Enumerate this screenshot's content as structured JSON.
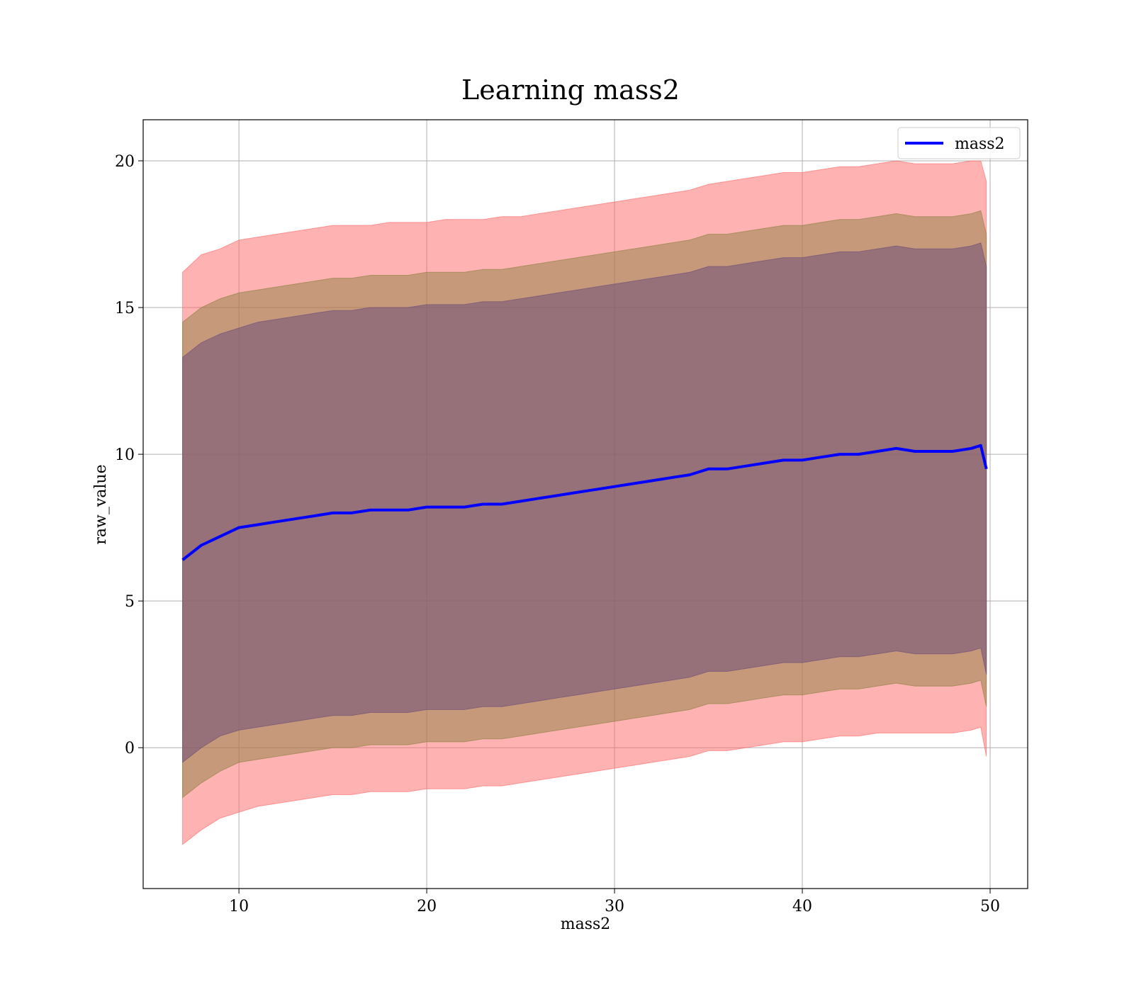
{
  "chart_data": {
    "type": "area",
    "title": "Learning mass2",
    "xlabel": "mass2",
    "ylabel": "raw_value",
    "xlim": [
      4.9,
      52
    ],
    "ylim": [
      -4.8,
      21.4
    ],
    "xticks": [
      10,
      20,
      30,
      40,
      50
    ],
    "yticks": [
      0,
      5,
      10,
      15,
      20
    ],
    "grid": true,
    "legend": {
      "placement": "top-right",
      "entries": [
        "mass2"
      ]
    },
    "series": [
      {
        "name": "mass2",
        "color": "#0000ff",
        "x": [
          7.0,
          8.0,
          9.0,
          10.0,
          11.0,
          12.0,
          13.0,
          14.0,
          15.0,
          16.0,
          17.0,
          18.0,
          19.0,
          20.0,
          21.0,
          22.0,
          23.0,
          24.0,
          25.0,
          26.0,
          27.0,
          28.0,
          29.0,
          30.0,
          31.0,
          32.0,
          33.0,
          34.0,
          35.0,
          36.0,
          37.0,
          38.0,
          39.0,
          40.0,
          41.0,
          42.0,
          43.0,
          44.0,
          45.0,
          46.0,
          47.0,
          48.0,
          49.0,
          49.5,
          49.8
        ],
        "y": [
          6.4,
          6.9,
          7.2,
          7.5,
          7.6,
          7.7,
          7.8,
          7.9,
          8.0,
          8.0,
          8.1,
          8.1,
          8.1,
          8.2,
          8.2,
          8.2,
          8.3,
          8.3,
          8.4,
          8.5,
          8.6,
          8.7,
          8.8,
          8.9,
          9.0,
          9.1,
          9.2,
          9.3,
          9.5,
          9.5,
          9.6,
          9.7,
          9.8,
          9.8,
          9.9,
          10.0,
          10.0,
          10.1,
          10.2,
          10.1,
          10.1,
          10.1,
          10.2,
          10.3,
          9.5
        ]
      }
    ],
    "bands": [
      {
        "color": "#ff6666",
        "lower": [
          -3.3,
          -2.8,
          -2.4,
          -2.2,
          -2.0,
          -1.9,
          -1.8,
          -1.7,
          -1.6,
          -1.6,
          -1.5,
          -1.5,
          -1.5,
          -1.4,
          -1.4,
          -1.4,
          -1.3,
          -1.3,
          -1.2,
          -1.1,
          -1.0,
          -0.9,
          -0.8,
          -0.7,
          -0.6,
          -0.5,
          -0.4,
          -0.3,
          -0.1,
          -0.1,
          0.0,
          0.1,
          0.2,
          0.2,
          0.3,
          0.4,
          0.4,
          0.5,
          0.5,
          0.5,
          0.5,
          0.5,
          0.6,
          0.7,
          -0.3
        ],
        "upper": [
          16.2,
          16.8,
          17.0,
          17.3,
          17.4,
          17.5,
          17.6,
          17.7,
          17.8,
          17.8,
          17.8,
          17.9,
          17.9,
          17.9,
          18.0,
          18.0,
          18.0,
          18.1,
          18.1,
          18.2,
          18.3,
          18.4,
          18.5,
          18.6,
          18.7,
          18.8,
          18.9,
          19.0,
          19.2,
          19.3,
          19.4,
          19.5,
          19.6,
          19.6,
          19.7,
          19.8,
          19.8,
          19.9,
          20.0,
          19.9,
          19.9,
          19.9,
          20.0,
          20.0,
          19.3
        ]
      },
      {
        "color": "#8b8040",
        "lower": [
          -1.7,
          -1.2,
          -0.8,
          -0.5,
          -0.4,
          -0.3,
          -0.2,
          -0.1,
          0.0,
          0.0,
          0.1,
          0.1,
          0.1,
          0.2,
          0.2,
          0.2,
          0.3,
          0.3,
          0.4,
          0.5,
          0.6,
          0.7,
          0.8,
          0.9,
          1.0,
          1.1,
          1.2,
          1.3,
          1.5,
          1.5,
          1.6,
          1.7,
          1.8,
          1.8,
          1.9,
          2.0,
          2.0,
          2.1,
          2.2,
          2.1,
          2.1,
          2.1,
          2.2,
          2.3,
          1.4
        ],
        "upper": [
          14.5,
          15.0,
          15.3,
          15.5,
          15.6,
          15.7,
          15.8,
          15.9,
          16.0,
          16.0,
          16.1,
          16.1,
          16.1,
          16.2,
          16.2,
          16.2,
          16.3,
          16.3,
          16.4,
          16.5,
          16.6,
          16.7,
          16.8,
          16.9,
          17.0,
          17.1,
          17.2,
          17.3,
          17.5,
          17.5,
          17.6,
          17.7,
          17.8,
          17.8,
          17.9,
          18.0,
          18.0,
          18.1,
          18.2,
          18.1,
          18.1,
          18.1,
          18.2,
          18.3,
          17.5
        ]
      },
      {
        "color": "#6a4a7a",
        "lower": [
          -0.5,
          0.0,
          0.4,
          0.6,
          0.7,
          0.8,
          0.9,
          1.0,
          1.1,
          1.1,
          1.2,
          1.2,
          1.2,
          1.3,
          1.3,
          1.3,
          1.4,
          1.4,
          1.5,
          1.6,
          1.7,
          1.8,
          1.9,
          2.0,
          2.1,
          2.2,
          2.3,
          2.4,
          2.6,
          2.6,
          2.7,
          2.8,
          2.9,
          2.9,
          3.0,
          3.1,
          3.1,
          3.2,
          3.3,
          3.2,
          3.2,
          3.2,
          3.3,
          3.4,
          2.5
        ],
        "upper": [
          13.3,
          13.8,
          14.1,
          14.3,
          14.5,
          14.6,
          14.7,
          14.8,
          14.9,
          14.9,
          15.0,
          15.0,
          15.0,
          15.1,
          15.1,
          15.1,
          15.2,
          15.2,
          15.3,
          15.4,
          15.5,
          15.6,
          15.7,
          15.8,
          15.9,
          16.0,
          16.1,
          16.2,
          16.4,
          16.4,
          16.5,
          16.6,
          16.7,
          16.7,
          16.8,
          16.9,
          16.9,
          17.0,
          17.1,
          17.0,
          17.0,
          17.0,
          17.1,
          17.2,
          16.4
        ]
      }
    ]
  }
}
